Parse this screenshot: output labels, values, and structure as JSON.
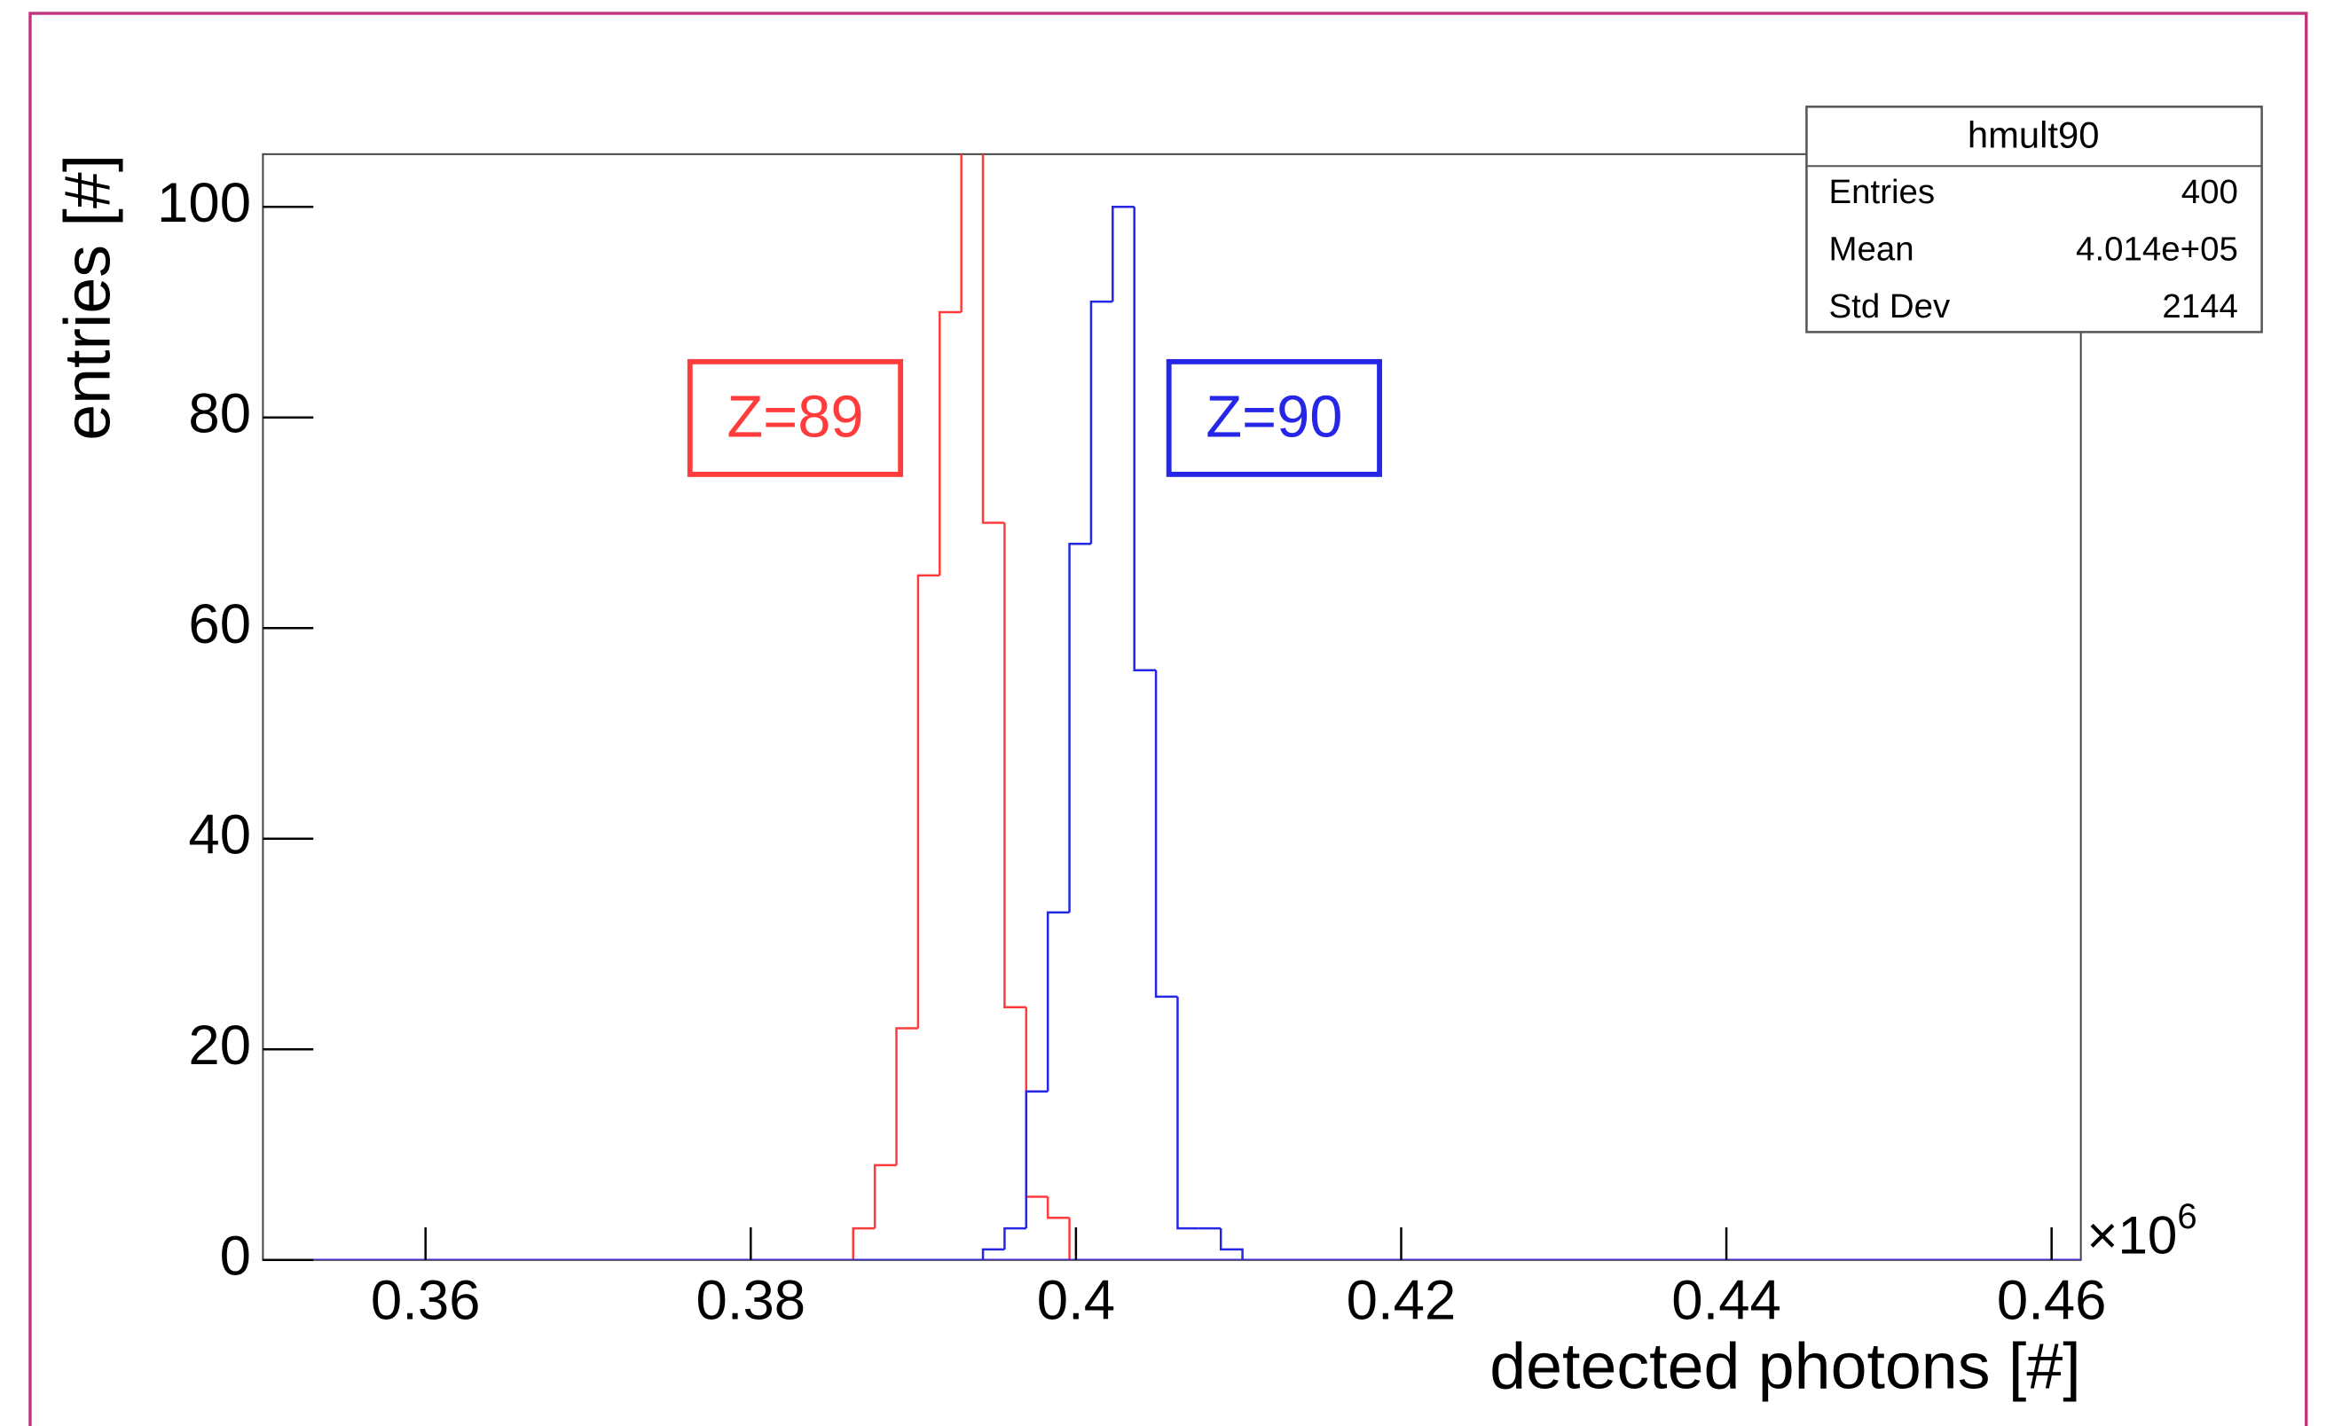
{
  "chart_data": {
    "type": "histogram",
    "x_label": "detected photons [#]",
    "y_label": "entries [#]",
    "x_multiplier": "×10",
    "x_multiplier_exponent": "6",
    "xlim": [
      0.35,
      0.4618
    ],
    "ylim": [
      0,
      105
    ],
    "xticks": [
      0.36,
      0.38,
      0.4,
      0.42,
      0.44,
      0.46
    ],
    "yticks": [
      0,
      20,
      40,
      60,
      80,
      100
    ],
    "bins": [
      0.3863,
      0.38763,
      0.38896,
      0.39029,
      0.39162,
      0.39295,
      0.39428,
      0.39561,
      0.39694,
      0.39827,
      0.3996,
      0.40093,
      0.40226,
      0.40359,
      0.40492,
      0.40625,
      0.40758,
      0.40891,
      0.41024
    ],
    "series": [
      {
        "name": "Z=89",
        "color": "#ff3b3b",
        "values": [
          3,
          9,
          22,
          65,
          90,
          107,
          70,
          24,
          6,
          4,
          0,
          0,
          0,
          0,
          0,
          0,
          0,
          0
        ]
      },
      {
        "name": "Z=90",
        "color": "#2626e6",
        "values": [
          0,
          0,
          0,
          0,
          0,
          0,
          1,
          3,
          16,
          33,
          68,
          91,
          100,
          56,
          25,
          3,
          3,
          1
        ]
      }
    ],
    "stats": {
      "title": "hmult90",
      "rows": [
        [
          "Entries",
          "400"
        ],
        [
          "Mean",
          "4.014e+05"
        ],
        [
          "Std Dev",
          "2144"
        ]
      ]
    }
  }
}
